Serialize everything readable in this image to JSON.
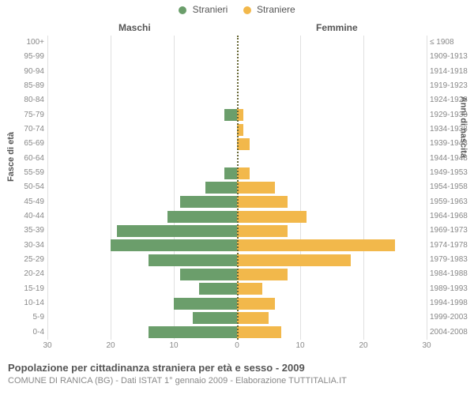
{
  "chart": {
    "type": "population-pyramid",
    "legend": [
      {
        "label": "Stranieri",
        "color": "#6b9e6b"
      },
      {
        "label": "Straniere",
        "color": "#f2b84b"
      }
    ],
    "male_header": "Maschi",
    "female_header": "Femmine",
    "y_axis_left_title": "Fasce di età",
    "y_axis_right_title": "Anni di nascita",
    "x_max": 30,
    "x_tick_step": 10,
    "x_ticks_left": [
      "30",
      "20",
      "10",
      "0"
    ],
    "x_ticks_right": [
      "0",
      "10",
      "20",
      "30"
    ],
    "grid_color": "#e0e0e0",
    "center_color": "#666633",
    "background_color": "#ffffff",
    "male_color": "#6b9e6b",
    "female_color": "#f2b84b",
    "rows": [
      {
        "age": "100+",
        "birth": "≤ 1908",
        "m": 0,
        "f": 0
      },
      {
        "age": "95-99",
        "birth": "1909-1913",
        "m": 0,
        "f": 0
      },
      {
        "age": "90-94",
        "birth": "1914-1918",
        "m": 0,
        "f": 0
      },
      {
        "age": "85-89",
        "birth": "1919-1923",
        "m": 0,
        "f": 0
      },
      {
        "age": "80-84",
        "birth": "1924-1928",
        "m": 0,
        "f": 0
      },
      {
        "age": "75-79",
        "birth": "1929-1933",
        "m": 2,
        "f": 1
      },
      {
        "age": "70-74",
        "birth": "1934-1938",
        "m": 0,
        "f": 1
      },
      {
        "age": "65-69",
        "birth": "1939-1943",
        "m": 0,
        "f": 2
      },
      {
        "age": "60-64",
        "birth": "1944-1948",
        "m": 0,
        "f": 0
      },
      {
        "age": "55-59",
        "birth": "1949-1953",
        "m": 2,
        "f": 2
      },
      {
        "age": "50-54",
        "birth": "1954-1958",
        "m": 5,
        "f": 6
      },
      {
        "age": "45-49",
        "birth": "1959-1963",
        "m": 9,
        "f": 8
      },
      {
        "age": "40-44",
        "birth": "1964-1968",
        "m": 11,
        "f": 11
      },
      {
        "age": "35-39",
        "birth": "1969-1973",
        "m": 19,
        "f": 8
      },
      {
        "age": "30-34",
        "birth": "1974-1978",
        "m": 20,
        "f": 25
      },
      {
        "age": "25-29",
        "birth": "1979-1983",
        "m": 14,
        "f": 18
      },
      {
        "age": "20-24",
        "birth": "1984-1988",
        "m": 9,
        "f": 8
      },
      {
        "age": "15-19",
        "birth": "1989-1993",
        "m": 6,
        "f": 4
      },
      {
        "age": "10-14",
        "birth": "1994-1998",
        "m": 10,
        "f": 6
      },
      {
        "age": "5-9",
        "birth": "1999-2003",
        "m": 7,
        "f": 5
      },
      {
        "age": "0-4",
        "birth": "2004-2008",
        "m": 14,
        "f": 7
      }
    ],
    "footer_title": "Popolazione per cittadinanza straniera per età e sesso - 2009",
    "footer_sub": "COMUNE DI RANICA (BG) - Dati ISTAT 1° gennaio 2009 - Elaborazione TUTTITALIA.IT"
  }
}
